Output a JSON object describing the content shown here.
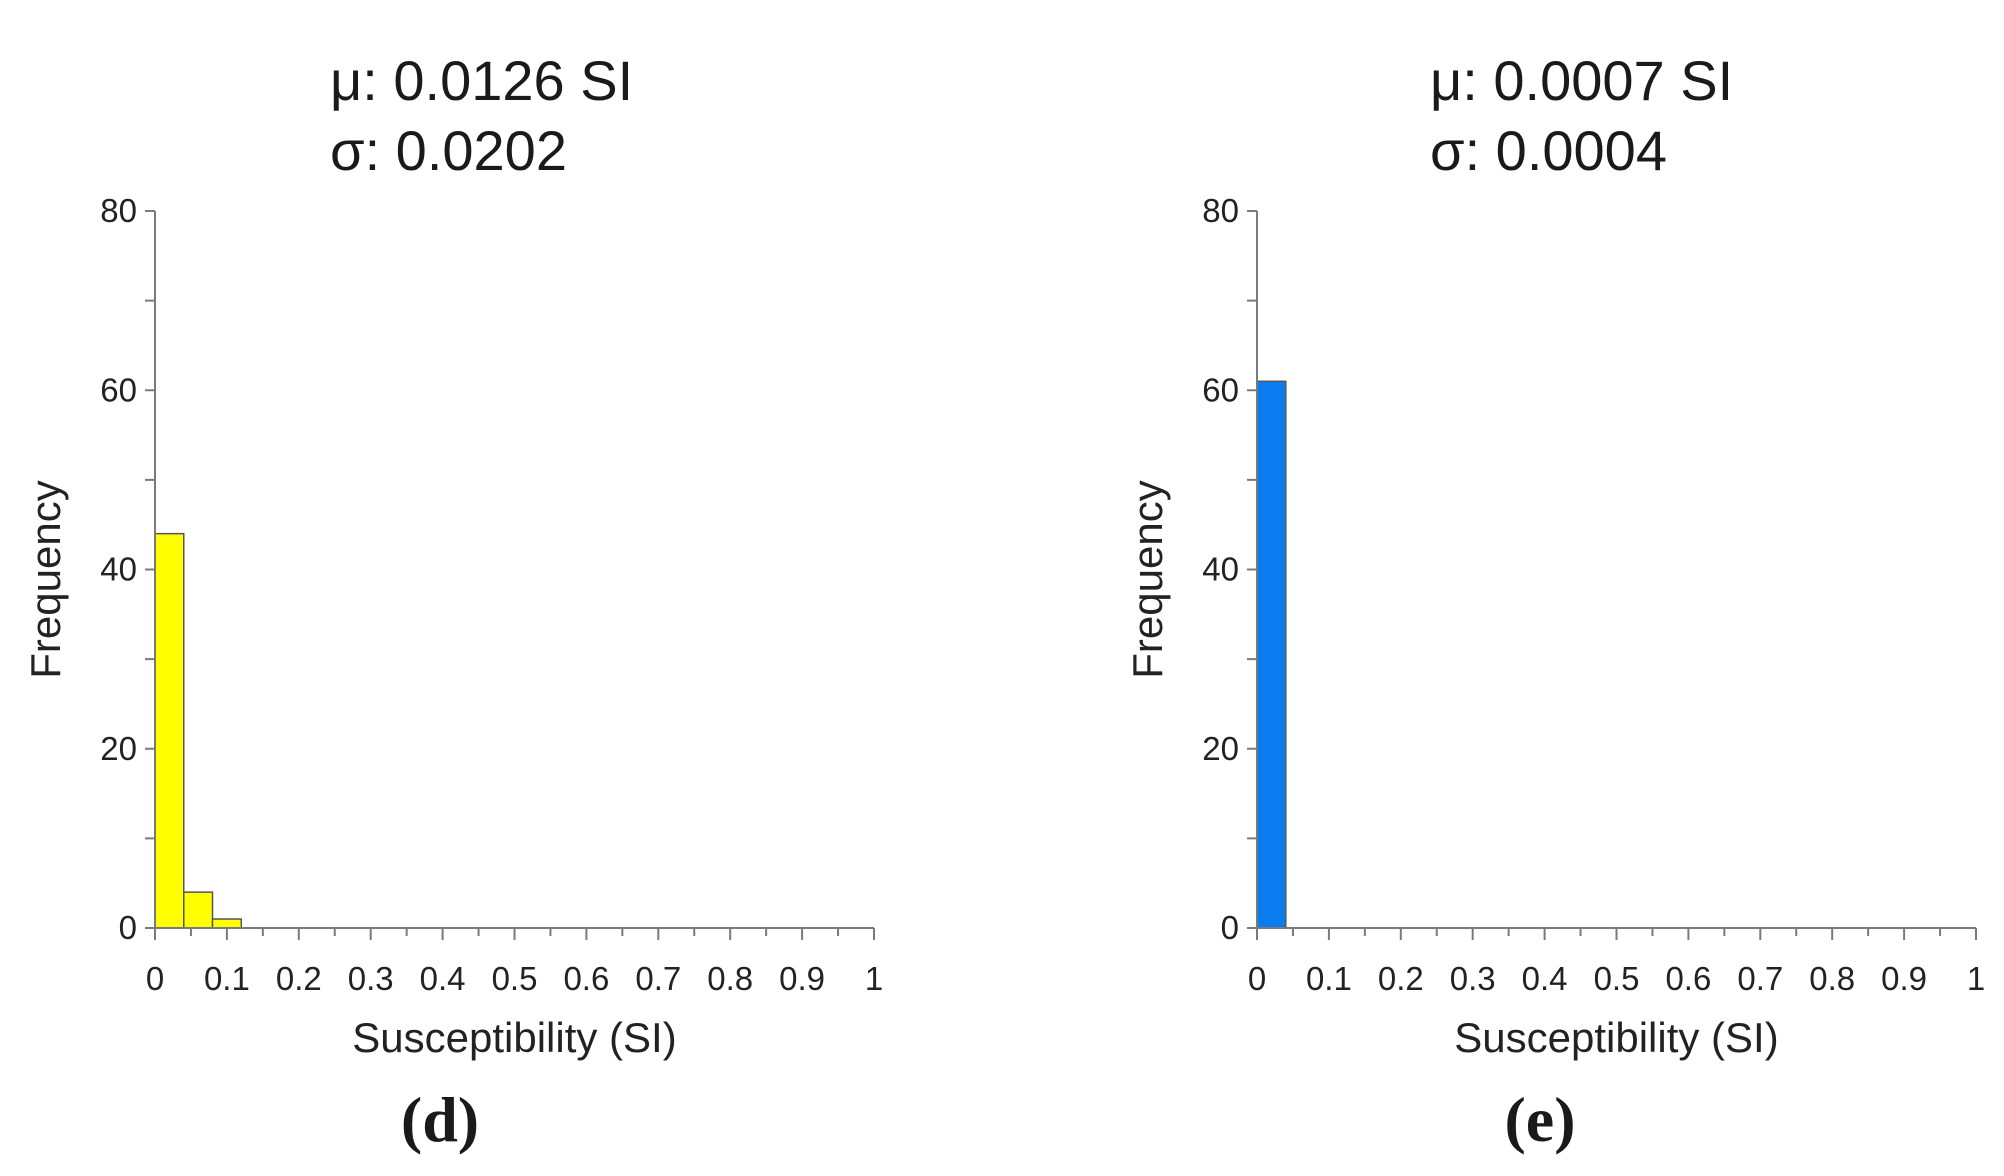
{
  "chart_data": [
    {
      "type": "bar",
      "panel_label_open": "(",
      "panel_label_letter": "d",
      "panel_label_close": ")",
      "mu_text": "μ: 0.0126 SI",
      "sigma_text": "σ: 0.0202",
      "xlabel": "Susceptibility (SI)",
      "ylabel": "Frequency",
      "xlim": [
        0,
        1
      ],
      "ylim": [
        0,
        80
      ],
      "xticks": [
        "0",
        "0.1",
        "0.2",
        "0.3",
        "0.4",
        "0.5",
        "0.6",
        "0.7",
        "0.8",
        "0.9",
        "1"
      ],
      "yticks": [
        "0",
        "20",
        "40",
        "60",
        "80"
      ],
      "bar_color": "#ffff00",
      "bins": [
        {
          "x0": 0.0,
          "x1": 0.04,
          "value": 44
        },
        {
          "x0": 0.04,
          "x1": 0.08,
          "value": 4
        },
        {
          "x0": 0.08,
          "x1": 0.12,
          "value": 1
        }
      ]
    },
    {
      "type": "bar",
      "panel_label_open": "(",
      "panel_label_letter": "e",
      "panel_label_close": ")",
      "mu_text": "μ: 0.0007 SI",
      "sigma_text": "σ: 0.0004",
      "xlabel": "Susceptibility (SI)",
      "ylabel": "Frequency",
      "xlim": [
        0,
        1
      ],
      "ylim": [
        0,
        80
      ],
      "xticks": [
        "0",
        "0.1",
        "0.2",
        "0.3",
        "0.4",
        "0.5",
        "0.6",
        "0.7",
        "0.8",
        "0.9",
        "1"
      ],
      "yticks": [
        "0",
        "20",
        "40",
        "60",
        "80"
      ],
      "bar_color": "#0a7cf0",
      "bins": [
        {
          "x0": 0.0,
          "x1": 0.04,
          "value": 61
        }
      ]
    }
  ]
}
